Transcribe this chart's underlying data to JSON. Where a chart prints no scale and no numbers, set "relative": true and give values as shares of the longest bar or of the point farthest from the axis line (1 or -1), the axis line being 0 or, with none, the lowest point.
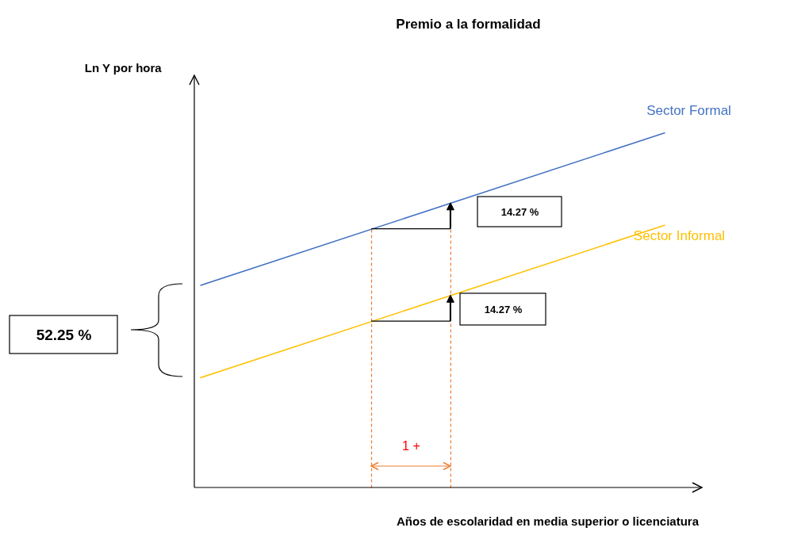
{
  "chart_data": {
    "type": "line",
    "relative": true,
    "title": "Premio a la formalidad",
    "ylabel": "Ln Y por hora",
    "xlabel": "Años de escolaridad en media superior o licenciatura",
    "categories": [
      null,
      null
    ],
    "tick_labels": false,
    "series": [
      {
        "name": "Sector Formal",
        "color": "#4472c4",
        "values": [
          0.57,
          1
        ]
      },
      {
        "name": "Sector Informal",
        "color": "#ffc000",
        "values": [
          0.31,
          0.74
        ]
      }
    ],
    "annotations": [
      "14.27 %",
      "14.27 %",
      "52.25 %",
      "1 +"
    ]
  }
}
